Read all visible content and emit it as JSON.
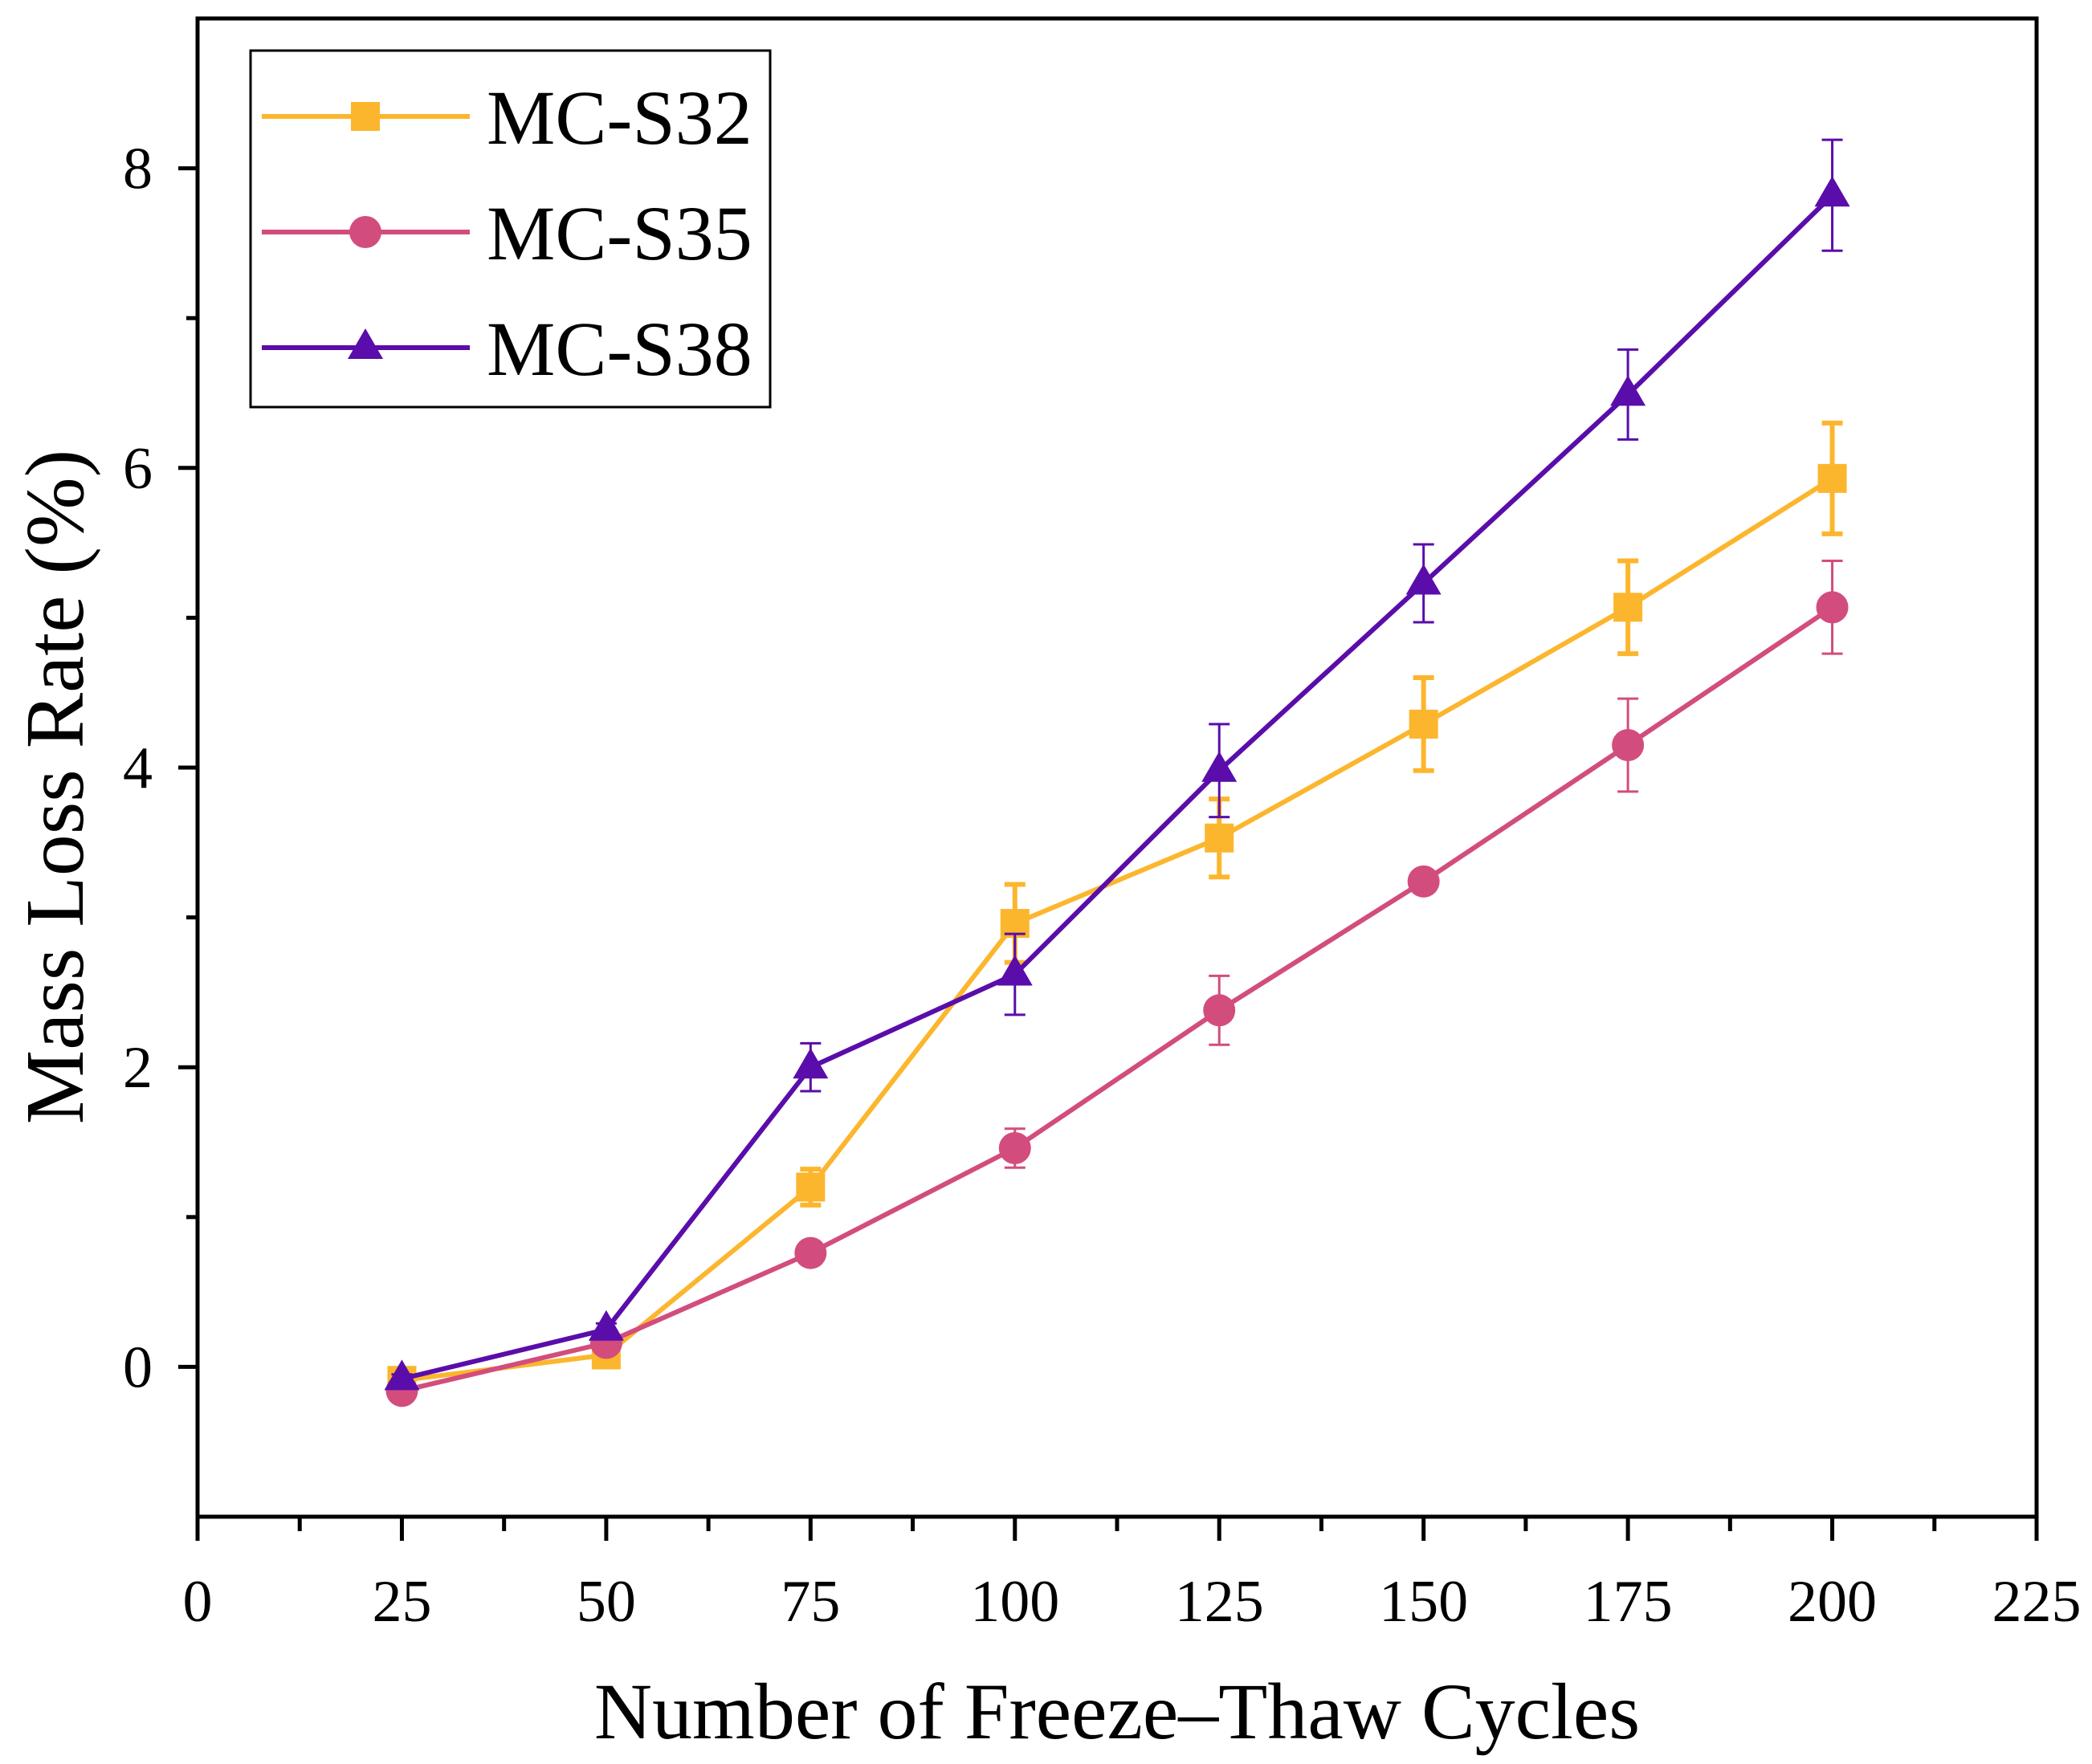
{
  "chart_data": {
    "type": "line",
    "title": "",
    "xlabel": "Number of Freeze–Thaw Cycles",
    "ylabel": "Mass Loss Rate (%)",
    "xlim": [
      0,
      225
    ],
    "ylim": [
      -1,
      9
    ],
    "x_ticks": [
      0,
      25,
      50,
      75,
      100,
      125,
      150,
      175,
      200,
      225
    ],
    "y_ticks": [
      0,
      2,
      4,
      6,
      8
    ],
    "grid": false,
    "legend": {
      "position": "top-left"
    },
    "x": [
      25,
      50,
      75,
      100,
      125,
      150,
      175,
      200
    ],
    "series": [
      {
        "name": "MC-S32",
        "color": "#FCB62E",
        "marker": "square",
        "values": [
          -0.09,
          0.08,
          1.2,
          2.96,
          3.53,
          4.29,
          5.07,
          5.93
        ],
        "errors": [
          0.04,
          0.04,
          0.12,
          0.26,
          0.26,
          0.31,
          0.31,
          0.37
        ]
      },
      {
        "name": "MC-S35",
        "color": "#D24D7D",
        "marker": "circle",
        "values": [
          -0.16,
          0.16,
          0.76,
          1.46,
          2.38,
          3.24,
          4.15,
          5.07
        ],
        "errors": [
          0.03,
          0.03,
          0.04,
          0.13,
          0.23,
          0.05,
          0.31,
          0.31
        ]
      },
      {
        "name": "MC-S38",
        "color": "#5A0DAA",
        "marker": "triangle",
        "values": [
          -0.08,
          0.25,
          2.0,
          2.62,
          3.98,
          5.23,
          6.49,
          7.82
        ],
        "errors": [
          0.03,
          0.04,
          0.16,
          0.27,
          0.31,
          0.26,
          0.3,
          0.37
        ]
      }
    ]
  }
}
